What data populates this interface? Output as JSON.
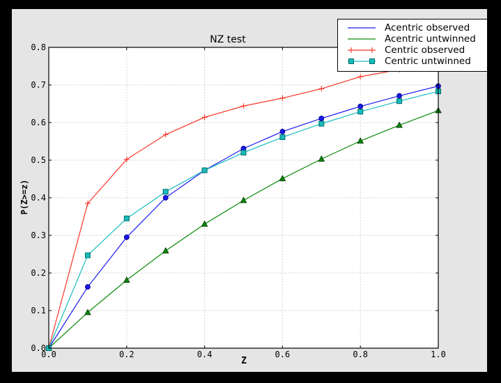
{
  "window": {
    "background": "#000000",
    "figure_background": "#e5e5e5",
    "plot_background": "#ffffff"
  },
  "colors": {
    "grid": "#c4c4c4",
    "axis": "#000000",
    "legend_border": "#000000"
  },
  "chart_data": {
    "type": "line",
    "title": "NZ test",
    "xlabel": "Z",
    "ylabel": "P(Z>=z)",
    "xlim": [
      0.0,
      1.0
    ],
    "ylim": [
      0.0,
      0.8
    ],
    "xticks": [
      0.0,
      0.2,
      0.4,
      0.6,
      0.8,
      1.0
    ],
    "yticks": [
      0.0,
      0.1,
      0.2,
      0.3,
      0.4,
      0.5,
      0.6,
      0.7,
      0.8
    ],
    "grid": true,
    "legend_position": "upper right",
    "x": [
      0.0,
      0.1,
      0.2,
      0.3,
      0.4,
      0.5,
      0.6,
      0.7,
      0.8,
      0.9,
      1.0
    ],
    "series": [
      {
        "name": "Acentric observed",
        "color": "#1a1af0",
        "marker": "circle",
        "marker_face": "#1a1af0",
        "marker_edge": "#000090",
        "legend_markers": false,
        "values": [
          0.0,
          0.163,
          0.295,
          0.4,
          0.473,
          0.531,
          0.576,
          0.611,
          0.643,
          0.671,
          0.697
        ]
      },
      {
        "name": "Acentric untwinned",
        "color": "#0a8a0a",
        "marker": "triangle",
        "marker_face": "#0a8a0a",
        "marker_edge": "#004000",
        "legend_markers": false,
        "values": [
          0.0,
          0.095,
          0.181,
          0.259,
          0.33,
          0.393,
          0.451,
          0.503,
          0.551,
          0.593,
          0.632
        ]
      },
      {
        "name": "Centric observed",
        "color": "#fa3527",
        "marker": "plus",
        "marker_face": "none",
        "marker_edge": "#fa3527",
        "legend_markers": true,
        "values": [
          0.0,
          0.385,
          0.502,
          0.568,
          0.614,
          0.644,
          0.665,
          0.69,
          0.722,
          0.741,
          0.756
        ]
      },
      {
        "name": "Centric untwinned",
        "color": "#17bcbc",
        "marker": "square",
        "marker_face": "#17bcbc",
        "marker_edge": "#006a6a",
        "legend_markers": true,
        "values": [
          0.0,
          0.247,
          0.345,
          0.416,
          0.473,
          0.52,
          0.561,
          0.597,
          0.629,
          0.657,
          0.683
        ]
      }
    ]
  }
}
